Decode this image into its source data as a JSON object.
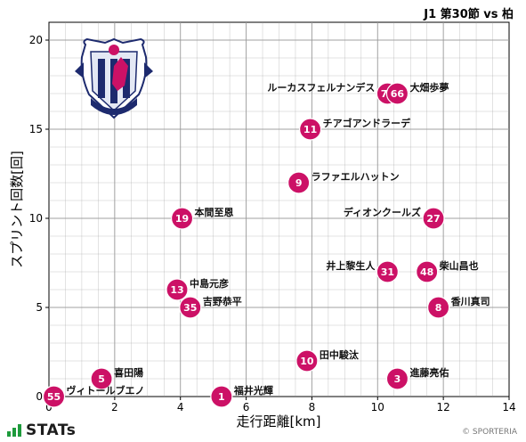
{
  "header": {
    "match_title": "J1 第30節 vs 柏"
  },
  "footer": {
    "brand": "STATs",
    "credit": "© SPORTERIA"
  },
  "colors": {
    "marker": "#cc1166",
    "marker_text": "#ffffff",
    "grid": "#999999",
    "brand_green": "#1e9b3c"
  },
  "chart_data": {
    "type": "scatter",
    "xlabel": "走行距離[km]",
    "ylabel": "スプリント回数[回]",
    "xlim": [
      0,
      14
    ],
    "ylim": [
      0,
      21
    ],
    "xticks": [
      0,
      2,
      4,
      6,
      8,
      10,
      12,
      14
    ],
    "yticks": [
      0,
      5,
      10,
      15,
      20
    ],
    "grid": true,
    "points": [
      {
        "number": "77",
        "name": "ルーカスフェルナンデス",
        "x": 10.3,
        "y": 17,
        "label_side": "left"
      },
      {
        "number": "66",
        "name": "大畑歩夢",
        "x": 10.6,
        "y": 17,
        "label_side": "right"
      },
      {
        "number": "11",
        "name": "チアゴアンドラーデ",
        "x": 7.95,
        "y": 15,
        "label_side": "right"
      },
      {
        "number": "9",
        "name": "ラファエルハットン",
        "x": 7.6,
        "y": 12,
        "label_side": "right"
      },
      {
        "number": "19",
        "name": "本間至恩",
        "x": 4.05,
        "y": 10,
        "label_side": "right"
      },
      {
        "number": "27",
        "name": "ディオンクールズ",
        "x": 11.7,
        "y": 10,
        "label_side": "left"
      },
      {
        "number": "31",
        "name": "井上黎生人",
        "x": 10.3,
        "y": 7,
        "label_side": "left"
      },
      {
        "number": "48",
        "name": "柴山昌也",
        "x": 11.5,
        "y": 7,
        "label_side": "right"
      },
      {
        "number": "13",
        "name": "中島元彦",
        "x": 3.9,
        "y": 6,
        "label_side": "right"
      },
      {
        "number": "35",
        "name": "吉野恭平",
        "x": 4.3,
        "y": 5,
        "label_side": "right"
      },
      {
        "number": "8",
        "name": "香川真司",
        "x": 11.85,
        "y": 5,
        "label_side": "right"
      },
      {
        "number": "10",
        "name": "田中駿汰",
        "x": 7.85,
        "y": 2,
        "label_side": "right"
      },
      {
        "number": "5",
        "name": "喜田陽",
        "x": 1.6,
        "y": 1,
        "label_side": "right"
      },
      {
        "number": "3",
        "name": "進藤亮佑",
        "x": 10.6,
        "y": 1,
        "label_side": "right"
      },
      {
        "number": "55",
        "name": "ヴィトールブエノ",
        "x": 0.15,
        "y": 0,
        "label_side": "right"
      },
      {
        "number": "1",
        "name": "福井光輝",
        "x": 5.25,
        "y": 0,
        "label_side": "right"
      }
    ]
  }
}
